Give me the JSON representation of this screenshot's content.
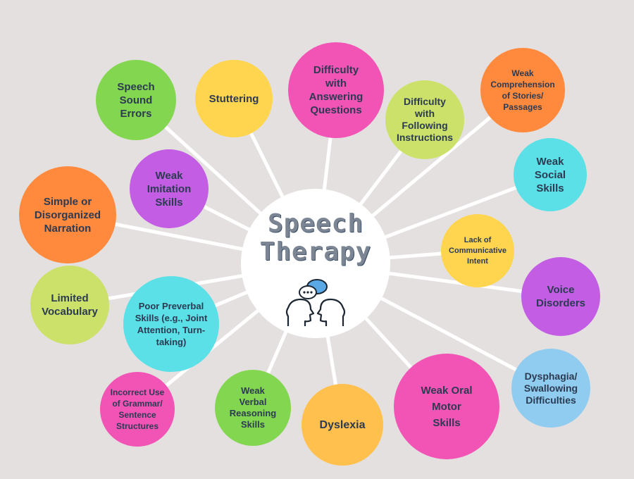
{
  "center": {
    "title_line1": "Speech",
    "title_line2": "Therapy",
    "icon": "two-heads-speech-bubbles-icon"
  },
  "colors": {
    "background": "#e4e0df",
    "connector": "#ffffff",
    "label_text": "#2c3a52",
    "green": "#83d64f",
    "yellow": "#ffd54f",
    "pink": "#f254b6",
    "lime": "#cbe16a",
    "orange": "#ff8a3d",
    "cyan": "#5ae0e6",
    "purple": "#c25de4",
    "light_blue": "#8fccef"
  },
  "nodes": [
    {
      "id": "speech-sound-errors",
      "label": "Speech\nSound\nErrors",
      "color": "#83d64f"
    },
    {
      "id": "stuttering",
      "label": "Stuttering",
      "color": "#ffd54f"
    },
    {
      "id": "difficulty-answering-questions",
      "label": "Difficulty\nwith\nAnswering\nQuestions",
      "color": "#f254b6"
    },
    {
      "id": "difficulty-following-instructions",
      "label": "Difficulty\nwith\nFollowing\nInstructions",
      "color": "#cbe16a"
    },
    {
      "id": "weak-comprehension",
      "label": "Weak\nComprehension\nof Stories/\nPassages",
      "color": "#ff8a3d"
    },
    {
      "id": "weak-social-skills",
      "label": "Weak\nSocial\nSkills",
      "color": "#5ae0e6"
    },
    {
      "id": "lack-communicative-intent",
      "label": "Lack of\nCommunicative\nIntent",
      "color": "#ffd54f"
    },
    {
      "id": "voice-disorders",
      "label": "Voice\nDisorders",
      "color": "#c25de4"
    },
    {
      "id": "dysphagia",
      "label": "Dysphagia/\nSwallowing\nDifficulties",
      "color": "#8fccef"
    },
    {
      "id": "weak-oral-motor-skills",
      "label": "Weak Oral\nMotor\nSkills",
      "color": "#f254b6"
    },
    {
      "id": "dyslexia",
      "label": "Dyslexia",
      "color": "#ffc04d"
    },
    {
      "id": "weak-verbal-reasoning",
      "label": "Weak\nVerbal\nReasoning\nSkills",
      "color": "#83d64f"
    },
    {
      "id": "incorrect-grammar",
      "label": "Incorrect Use\nof Grammar/\nSentence\nStructures",
      "color": "#f254b6"
    },
    {
      "id": "poor-preverbal-skills",
      "label": "Poor Preverbal\nSkills (e.g., Joint\nAttention, Turn-\ntaking)",
      "color": "#5ae0e6"
    },
    {
      "id": "limited-vocabulary",
      "label": "Limited\nVocabulary",
      "color": "#cbe16a"
    },
    {
      "id": "simple-narration",
      "label": "Simple or\nDisorganized\nNarration",
      "color": "#ff8a3d"
    },
    {
      "id": "weak-imitation-skills",
      "label": "Weak\nImitation\nSkills",
      "color": "#c25de4"
    }
  ]
}
